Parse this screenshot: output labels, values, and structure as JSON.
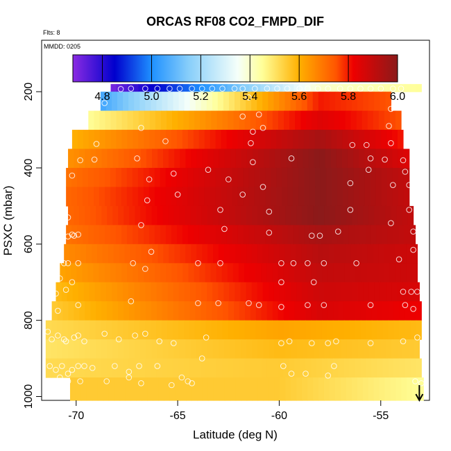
{
  "chart_data": {
    "type": "heatmap",
    "title": "ORCAS RF08 CO2_FMPD_DIF",
    "annotations": {
      "flights": "Flts: 8",
      "date": "MMDD: 0205"
    },
    "xlabel": "Latitude (deg N)",
    "ylabel": "PSXC (mbar)",
    "xlim": [
      -71.7,
      -52.6
    ],
    "ylim": [
      1010,
      65
    ],
    "y_reversed": true,
    "xticks": [
      -70,
      -65,
      -60,
      -55
    ],
    "yticks": [
      200,
      400,
      600,
      800,
      1000
    ],
    "grid": false,
    "colorbar": {
      "range": [
        4.68,
        6.0
      ],
      "ticks": [
        4.8,
        5.0,
        5.2,
        5.4,
        5.6,
        5.8,
        6.0
      ],
      "stops": [
        {
          "value": 4.68,
          "color": "#8a2be2"
        },
        {
          "value": 4.85,
          "color": "#0000cd"
        },
        {
          "value": 5.0,
          "color": "#1e90ff"
        },
        {
          "value": 5.15,
          "color": "#87cefa"
        },
        {
          "value": 5.35,
          "color": "#f5fffa"
        },
        {
          "value": 5.45,
          "color": "#ffff99"
        },
        {
          "value": 5.6,
          "color": "#ffb000"
        },
        {
          "value": 5.75,
          "color": "#ff5500"
        },
        {
          "value": 5.82,
          "color": "#ee0000"
        },
        {
          "value": 6.0,
          "color": "#8b1a1a"
        }
      ]
    },
    "layers": [
      {
        "p": [
          180,
          200
        ],
        "lat": [
          -68.3,
          -53.0
        ],
        "value_start": 4.7,
        "value_end": 5.45,
        "peak": 5.4,
        "peak_lat": -58
      },
      {
        "p": [
          200,
          250
        ],
        "lat": [
          -68.8,
          -54.5
        ],
        "value_start": 5.05,
        "value_end": 5.75,
        "peak": 5.8,
        "peak_lat": -58
      },
      {
        "p": [
          250,
          300
        ],
        "lat": [
          -69.4,
          -54.0
        ],
        "value_start": 5.45,
        "value_end": 5.75,
        "peak": 5.85,
        "peak_lat": -58
      },
      {
        "p": [
          300,
          350
        ],
        "lat": [
          -70.2,
          -53.9
        ],
        "value_start": 5.6,
        "value_end": 5.8,
        "peak": 5.95,
        "peak_lat": -58
      },
      {
        "p": [
          350,
          400
        ],
        "lat": [
          -70.4,
          -53.6
        ],
        "value_start": 5.65,
        "value_end": 5.85,
        "peak": 6.0,
        "peak_lat": -58
      },
      {
        "p": [
          400,
          450
        ],
        "lat": [
          -70.5,
          -53.6
        ],
        "value_start": 5.7,
        "value_end": 5.9,
        "peak": 6.0,
        "peak_lat": -58
      },
      {
        "p": [
          450,
          500
        ],
        "lat": [
          -70.5,
          -53.6
        ],
        "value_start": 5.72,
        "value_end": 5.9,
        "peak": 6.0,
        "peak_lat": -58
      },
      {
        "p": [
          500,
          550
        ],
        "lat": [
          -70.4,
          -53.4
        ],
        "value_start": 5.72,
        "value_end": 5.9,
        "peak": 6.0,
        "peak_lat": -58
      },
      {
        "p": [
          550,
          600
        ],
        "lat": [
          -70.5,
          -53.3
        ],
        "value_start": 5.7,
        "value_end": 5.9,
        "peak": 5.95,
        "peak_lat": -58
      },
      {
        "p": [
          600,
          650
        ],
        "lat": [
          -70.6,
          -53.2
        ],
        "value_start": 5.66,
        "value_end": 5.88,
        "peak": 5.92,
        "peak_lat": -58
      },
      {
        "p": [
          650,
          700
        ],
        "lat": [
          -70.8,
          -53.2
        ],
        "value_start": 5.62,
        "value_end": 5.88,
        "peak": 5.9,
        "peak_lat": -58
      },
      {
        "p": [
          700,
          750
        ],
        "lat": [
          -71.0,
          -53.1
        ],
        "value_start": 5.58,
        "value_end": 5.86,
        "peak": 5.88,
        "peak_lat": -58
      },
      {
        "p": [
          750,
          800
        ],
        "lat": [
          -71.2,
          -53.0
        ],
        "value_start": 5.55,
        "value_end": 5.82,
        "peak": 5.86,
        "peak_lat": -58
      },
      {
        "p": [
          800,
          850
        ],
        "lat": [
          -71.5,
          -53.0
        ],
        "value_start": 5.52,
        "value_end": 5.58,
        "peak": 5.62,
        "peak_lat": -60
      },
      {
        "p": [
          850,
          900
        ],
        "lat": [
          -71.5,
          -53.1
        ],
        "value_start": 5.5,
        "value_end": 5.55,
        "peak": 5.58,
        "peak_lat": -60
      },
      {
        "p": [
          900,
          950
        ],
        "lat": [
          -71.5,
          -53.0
        ],
        "value_start": 5.52,
        "value_end": 5.5,
        "peak": 5.55,
        "peak_lat": -60
      },
      {
        "p": [
          950,
          1010
        ],
        "lat": [
          -70.3,
          -52.9
        ],
        "value_start": 5.55,
        "value_end": 5.45,
        "peak": 5.55,
        "peak_lat": -60
      }
    ],
    "points": [
      [
        -67.8,
        193
      ],
      [
        -67.3,
        192
      ],
      [
        -66.6,
        192
      ],
      [
        -66.0,
        192
      ],
      [
        -65.4,
        192
      ],
      [
        -64.9,
        192
      ],
      [
        -64.3,
        192
      ],
      [
        -63.8,
        192
      ],
      [
        -63.3,
        192
      ],
      [
        -62.8,
        192
      ],
      [
        -62.2,
        192
      ],
      [
        -61.8,
        192
      ],
      [
        -61.2,
        192
      ],
      [
        -60.6,
        192
      ],
      [
        -60.1,
        192
      ],
      [
        -59.6,
        192
      ],
      [
        -59.0,
        192
      ],
      [
        -58.6,
        192
      ],
      [
        -58.1,
        192
      ],
      [
        -57.6,
        192
      ],
      [
        -57.0,
        192
      ],
      [
        -56.5,
        192
      ],
      [
        -56.0,
        192
      ],
      [
        -55.5,
        192
      ],
      [
        -55.0,
        192
      ],
      [
        -54.4,
        192
      ],
      [
        -54.0,
        192
      ],
      [
        -68.6,
        230
      ],
      [
        -61.5,
        215
      ],
      [
        -54.5,
        245
      ],
      [
        -66.8,
        295
      ],
      [
        -61.8,
        265
      ],
      [
        -61.0,
        260
      ],
      [
        -60.8,
        295
      ],
      [
        -61.3,
        305
      ],
      [
        -54.6,
        290
      ],
      [
        -69.0,
        337
      ],
      [
        -65.6,
        330
      ],
      [
        -61.4,
        335
      ],
      [
        -56.4,
        340
      ],
      [
        -55.7,
        340
      ],
      [
        -54.5,
        335
      ],
      [
        -69.8,
        380
      ],
      [
        -69.1,
        378
      ],
      [
        -67.0,
        375
      ],
      [
        -61.3,
        385
      ],
      [
        -59.4,
        375
      ],
      [
        -55.5,
        375
      ],
      [
        -54.8,
        378
      ],
      [
        -53.9,
        380
      ],
      [
        -70.2,
        420
      ],
      [
        -65.2,
        415
      ],
      [
        -63.5,
        405
      ],
      [
        -55.6,
        405
      ],
      [
        -53.8,
        410
      ],
      [
        -66.4,
        430
      ],
      [
        -62.5,
        430
      ],
      [
        -60.8,
        450
      ],
      [
        -56.5,
        440
      ],
      [
        -54.4,
        445
      ],
      [
        -53.6,
        445
      ],
      [
        -66.5,
        485
      ],
      [
        -65.0,
        470
      ],
      [
        -61.8,
        470
      ],
      [
        -70.4,
        530
      ],
      [
        -62.9,
        510
      ],
      [
        -60.5,
        515
      ],
      [
        -56.5,
        510
      ],
      [
        -53.6,
        510
      ],
      [
        -70.4,
        580
      ],
      [
        -70.2,
        575
      ],
      [
        -70.1,
        578
      ],
      [
        -69.9,
        575
      ],
      [
        -66.8,
        550
      ],
      [
        -62.7,
        560
      ],
      [
        -60.5,
        570
      ],
      [
        -58.4,
        578
      ],
      [
        -58.0,
        578
      ],
      [
        -57.1,
        567
      ],
      [
        -54.5,
        545
      ],
      [
        -53.4,
        567
      ],
      [
        -66.3,
        620
      ],
      [
        -53.4,
        615
      ],
      [
        -70.6,
        650
      ],
      [
        -70.4,
        650
      ],
      [
        -69.9,
        650
      ],
      [
        -67.2,
        650
      ],
      [
        -64.0,
        650
      ],
      [
        -62.9,
        650
      ],
      [
        -59.9,
        650
      ],
      [
        -59.3,
        650
      ],
      [
        -58.6,
        650
      ],
      [
        -57.8,
        650
      ],
      [
        -56.2,
        650
      ],
      [
        -54.1,
        640
      ],
      [
        -70.8,
        690
      ],
      [
        -70.2,
        700
      ],
      [
        -66.6,
        665
      ],
      [
        -59.9,
        700
      ],
      [
        -58.3,
        700
      ],
      [
        -71.0,
        730
      ],
      [
        -70.5,
        720
      ],
      [
        -53.9,
        725
      ],
      [
        -53.5,
        725
      ],
      [
        -53.2,
        725
      ],
      [
        -70.9,
        775
      ],
      [
        -69.9,
        760
      ],
      [
        -67.3,
        750
      ],
      [
        -64.0,
        755
      ],
      [
        -63.0,
        755
      ],
      [
        -61.5,
        755
      ],
      [
        -61.0,
        760
      ],
      [
        -59.9,
        765
      ],
      [
        -58.6,
        760
      ],
      [
        -57.8,
        760
      ],
      [
        -55.5,
        760
      ],
      [
        -53.8,
        760
      ],
      [
        -53.4,
        770
      ],
      [
        -71.4,
        830
      ],
      [
        -71.2,
        850
      ],
      [
        -70.9,
        840
      ],
      [
        -70.6,
        850
      ],
      [
        -70.5,
        855
      ],
      [
        -70.1,
        845
      ],
      [
        -69.9,
        840
      ],
      [
        -69.6,
        855
      ],
      [
        -68.6,
        835
      ],
      [
        -67.9,
        850
      ],
      [
        -67.1,
        840
      ],
      [
        -66.6,
        835
      ],
      [
        -65.9,
        855
      ],
      [
        -65.2,
        860
      ],
      [
        -63.6,
        845
      ],
      [
        -59.9,
        860
      ],
      [
        -59.5,
        855
      ],
      [
        -58.4,
        860
      ],
      [
        -57.6,
        860
      ],
      [
        -57.2,
        855
      ],
      [
        -55.5,
        860
      ],
      [
        -53.9,
        855
      ],
      [
        -53.2,
        845
      ],
      [
        -71.3,
        920
      ],
      [
        -71.0,
        930
      ],
      [
        -70.7,
        920
      ],
      [
        -70.4,
        940
      ],
      [
        -70.2,
        930
      ],
      [
        -69.9,
        920
      ],
      [
        -69.6,
        920
      ],
      [
        -69.2,
        925
      ],
      [
        -68.1,
        920
      ],
      [
        -67.4,
        935
      ],
      [
        -66.9,
        920
      ],
      [
        -66.0,
        920
      ],
      [
        -64.8,
        950
      ],
      [
        -64.5,
        960
      ],
      [
        -63.8,
        900
      ],
      [
        -59.8,
        920
      ],
      [
        -59.4,
        940
      ],
      [
        -58.7,
        940
      ],
      [
        -57.6,
        945
      ],
      [
        -57.3,
        920
      ],
      [
        -71.3,
        960
      ],
      [
        -70.8,
        950
      ],
      [
        -70.4,
        960
      ],
      [
        -69.8,
        960
      ],
      [
        -68.5,
        960
      ],
      [
        -67.4,
        950
      ],
      [
        -66.8,
        965
      ],
      [
        -65.3,
        970
      ],
      [
        -64.3,
        965
      ],
      [
        -53.3,
        960
      ],
      [
        -53.0,
        965
      ]
    ],
    "arrow": {
      "lat": -53.1,
      "p": 1010,
      "direction": "down"
    }
  }
}
